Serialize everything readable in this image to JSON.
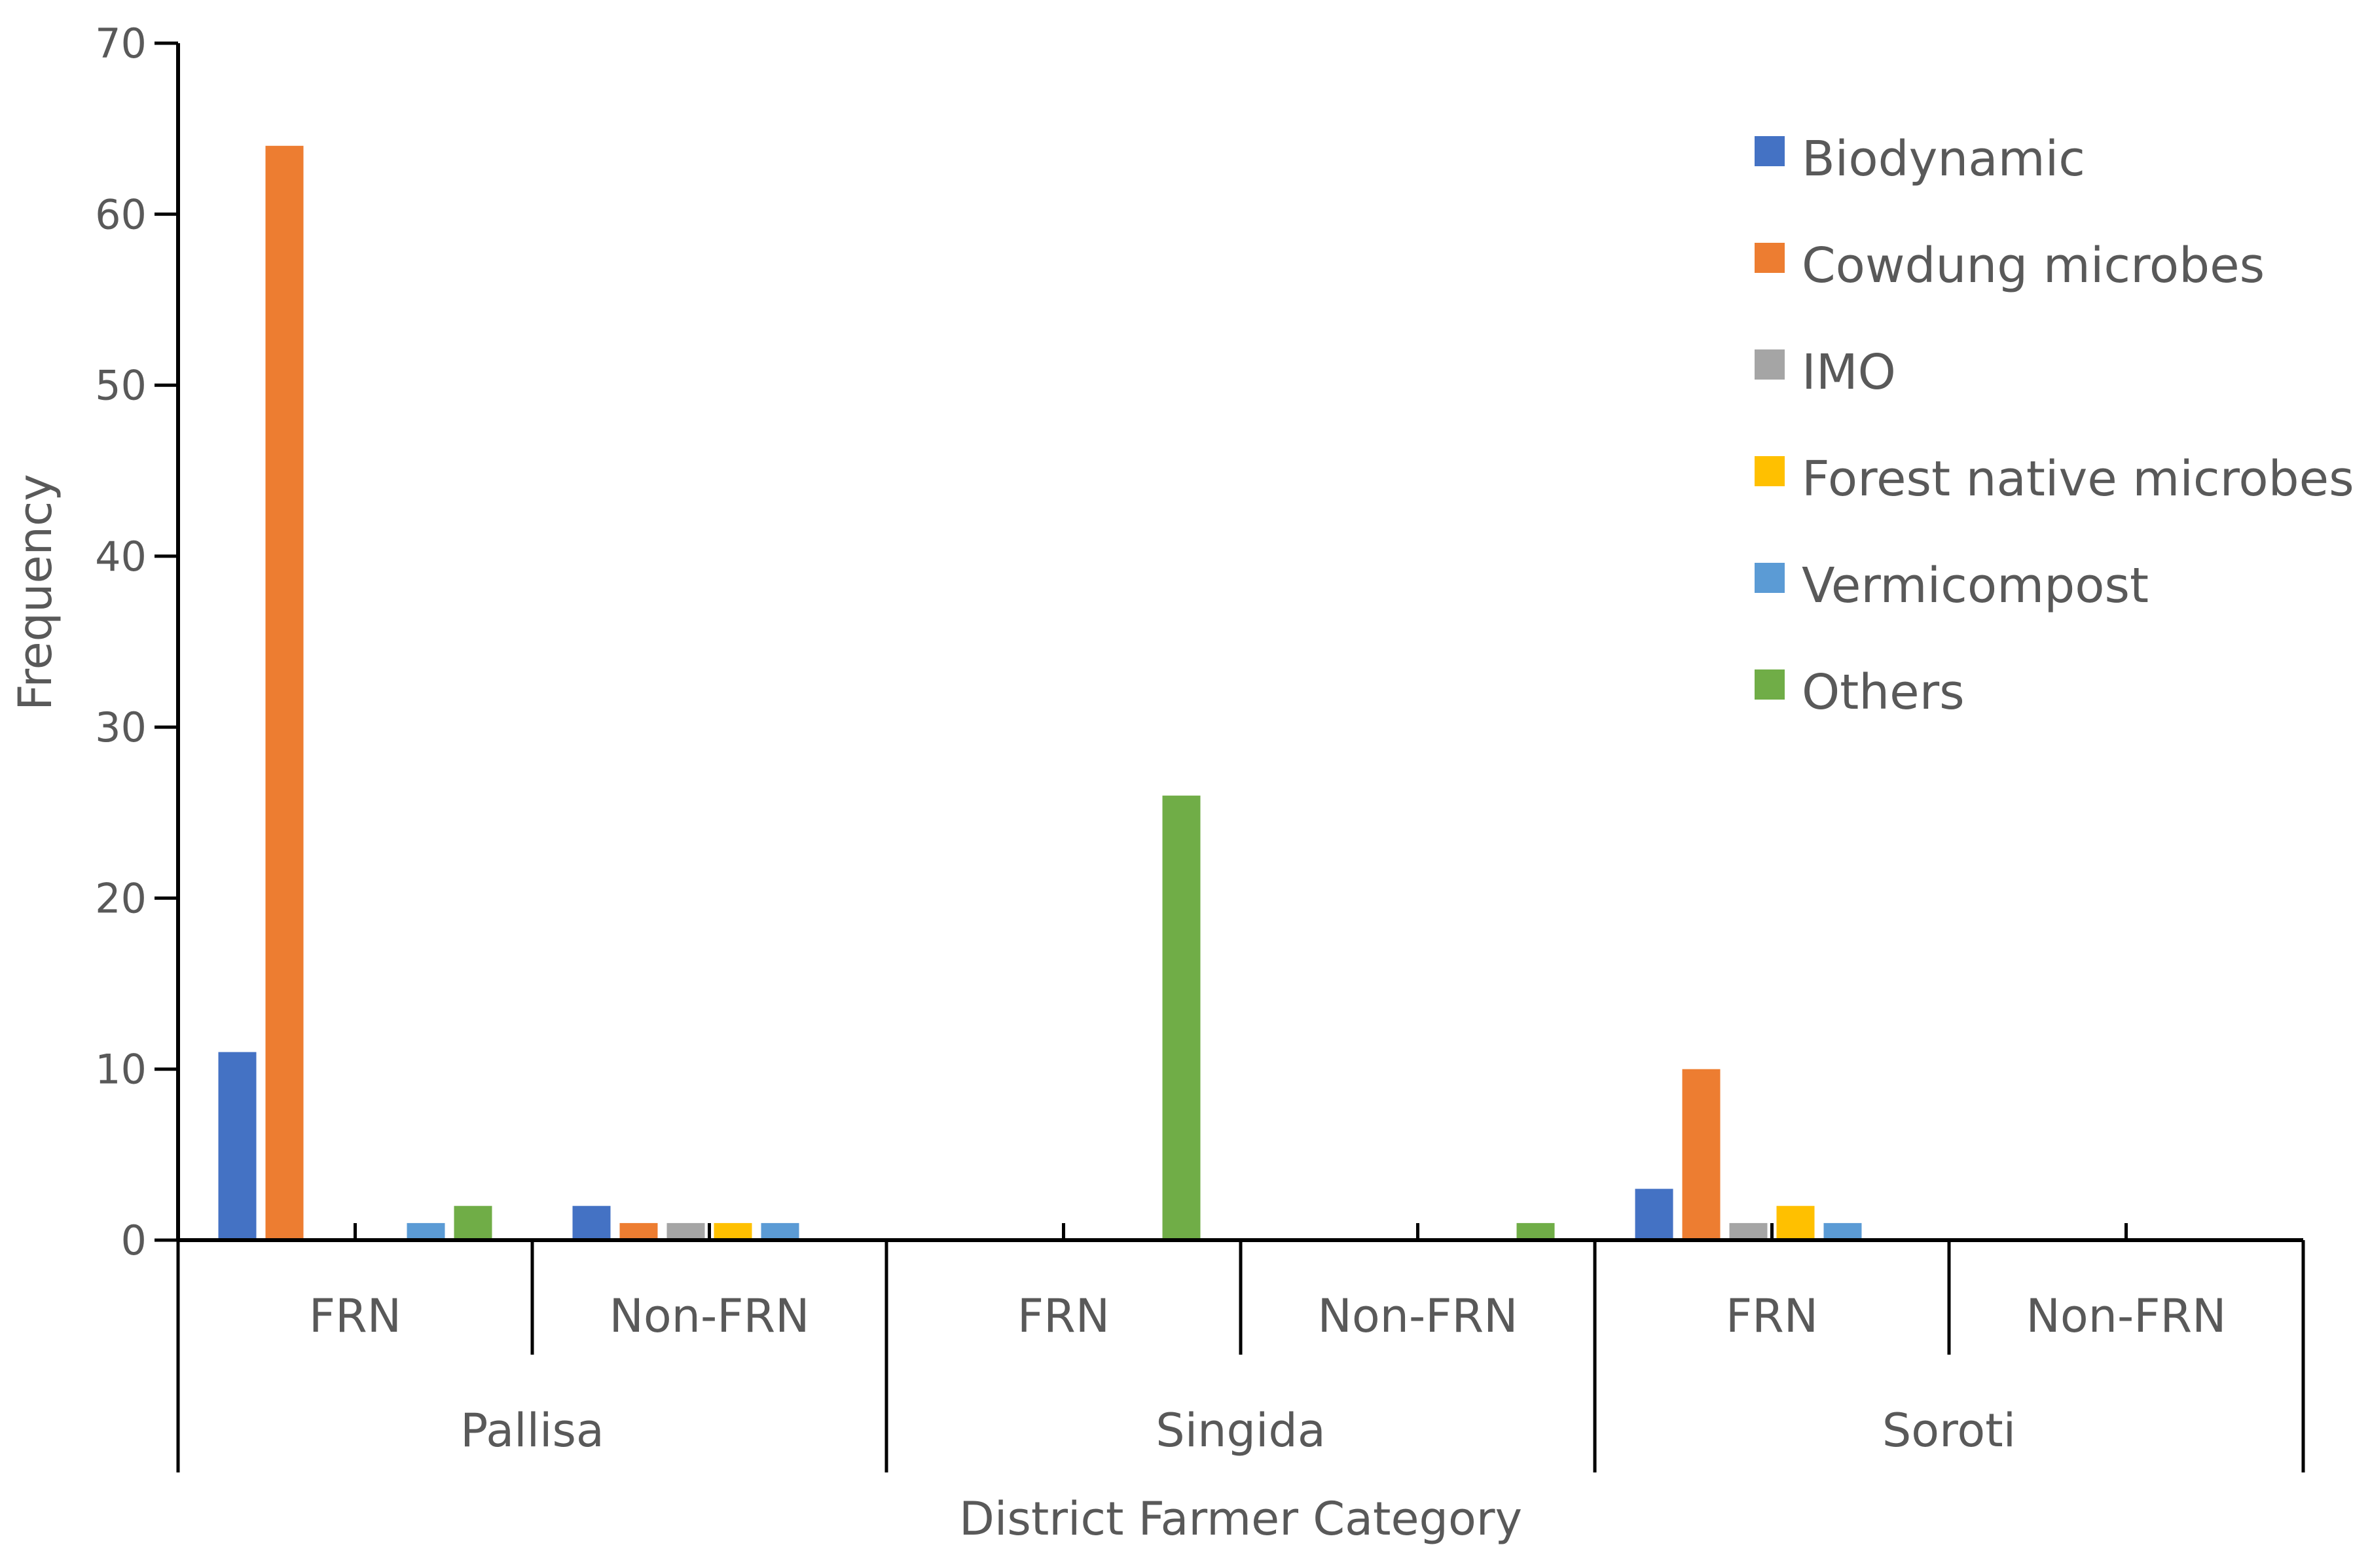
{
  "chart_data": {
    "type": "bar",
    "title": "",
    "xlabel": "District Farmer Category",
    "ylabel": "Frequency",
    "ylim": [
      0,
      70
    ],
    "yticks": [
      0,
      10,
      20,
      30,
      40,
      50,
      60,
      70
    ],
    "grid": false,
    "legend_position": "top-right",
    "groups": [
      {
        "name": "Pallisa",
        "categories": [
          "FRN",
          "Non-FRN"
        ]
      },
      {
        "name": "Singida",
        "categories": [
          "FRN",
          "Non-FRN"
        ]
      },
      {
        "name": "Soroti",
        "categories": [
          "FRN",
          "Non-FRN"
        ]
      }
    ],
    "categories": [
      "FRN",
      "Non-FRN",
      "FRN",
      "Non-FRN",
      "FRN",
      "Non-FRN"
    ],
    "series": [
      {
        "name": "Biodynamic",
        "color": "#4472C4",
        "values": [
          11,
          2,
          0,
          0,
          3,
          0
        ]
      },
      {
        "name": "Cowdung microbes",
        "color": "#ED7D31",
        "values": [
          64,
          1,
          0,
          0,
          10,
          0
        ]
      },
      {
        "name": "IMO",
        "color": "#A5A5A5",
        "values": [
          0,
          1,
          0,
          0,
          1,
          0
        ]
      },
      {
        "name": "Forest native microbes",
        "color": "#FFC000",
        "values": [
          0,
          1,
          0,
          0,
          2,
          0
        ]
      },
      {
        "name": "Vermicompost",
        "color": "#5B9BD5",
        "values": [
          1,
          1,
          0,
          0,
          1,
          0
        ]
      },
      {
        "name": "Others",
        "color": "#70AD47",
        "values": [
          2,
          0,
          26,
          1,
          0,
          0
        ]
      }
    ]
  }
}
